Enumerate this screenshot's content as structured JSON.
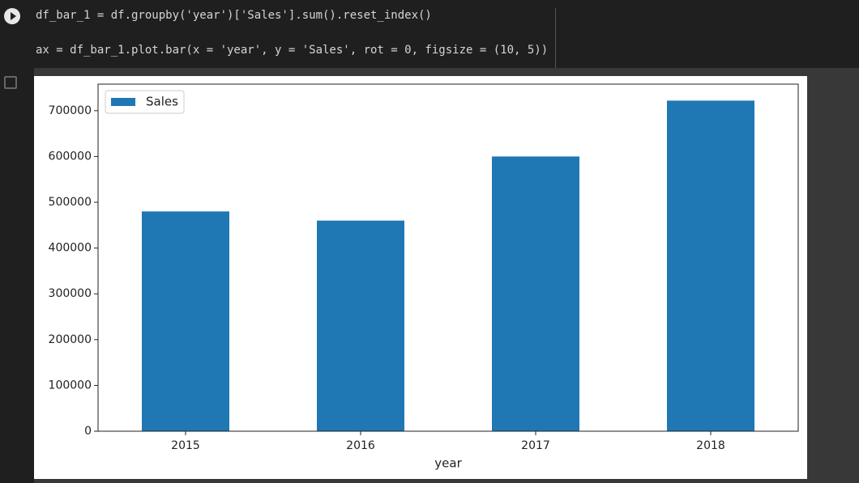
{
  "code": {
    "lines": [
      "df_bar_1 = df.groupby('year')['Sales'].sum().reset_index()",
      "ax = df_bar_1.plot.bar(x = 'year', y = 'Sales', rot = 0, figsize = (10, 5))"
    ]
  },
  "chart_data": {
    "type": "bar",
    "x_label": "year",
    "categories": [
      "2015",
      "2016",
      "2017",
      "2018"
    ],
    "series": [
      {
        "name": "Sales",
        "color": "#1f77b4",
        "values": [
          480000,
          460000,
          600000,
          722000
        ]
      }
    ],
    "ylim": [
      0,
      758000
    ],
    "yticks": [
      0,
      100000,
      200000,
      300000,
      400000,
      500000,
      600000,
      700000
    ],
    "legend": "upper left"
  }
}
